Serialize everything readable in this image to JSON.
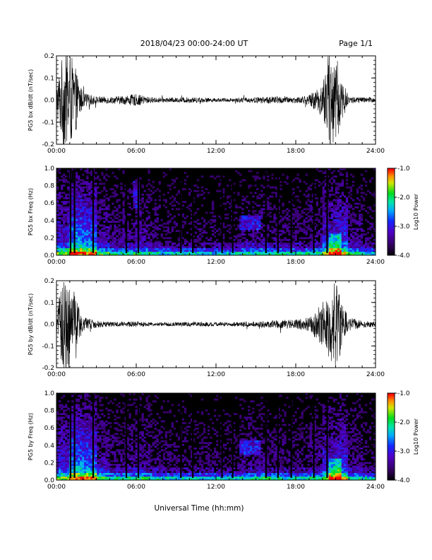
{
  "header": {
    "title": "2018/04/23  00:00-24:00 UT",
    "page": "Page 1/1"
  },
  "chart_data": [
    {
      "type": "line",
      "title": "",
      "ylabel": "PG5 bx dB/dt (nT/sec)",
      "xlim": [
        0,
        24
      ],
      "ylim": [
        -0.2,
        0.2
      ],
      "x_ticks": [
        "00:00",
        "06:00",
        "12:00",
        "18:00",
        "24:00"
      ],
      "y_ticks": [
        "-0.2",
        "-0.1",
        "0.0",
        "0.1",
        "0.2"
      ],
      "grid": false,
      "series": [
        {
          "x": [
            0,
            0.5,
            1,
            1.5,
            2,
            3,
            4,
            5,
            6,
            7,
            8,
            9,
            10,
            11,
            12,
            13,
            14,
            15,
            16,
            17,
            18,
            19,
            20,
            20.5,
            21,
            21.5,
            22,
            23,
            24
          ],
          "amplitude": [
            0.06,
            0.2,
            0.2,
            0.12,
            0.03,
            0.015,
            0.014,
            0.018,
            0.025,
            0.012,
            0.01,
            0.01,
            0.012,
            0.01,
            0.008,
            0.008,
            0.01,
            0.012,
            0.015,
            0.015,
            0.012,
            0.02,
            0.07,
            0.2,
            0.2,
            0.08,
            0.015,
            0.012,
            0.012
          ]
        }
      ]
    },
    {
      "type": "heatmap",
      "title": "",
      "ylabel": "PG5 bx Freq (Hz)",
      "xlim": [
        0,
        24
      ],
      "ylim": [
        0,
        1
      ],
      "x_ticks": [
        "00:00",
        "06:00",
        "12:00",
        "18:00",
        "24:00"
      ],
      "y_ticks": [
        "0.0",
        "0.2",
        "0.4",
        "0.6",
        "0.8",
        "1.0"
      ],
      "colorbar": {
        "label": "Log10 Power",
        "range": [
          -4.0,
          -1.0
        ],
        "ticks": [
          "-1.0",
          "-2.0",
          "-3.0",
          "-4.0"
        ]
      }
    },
    {
      "type": "line",
      "title": "",
      "ylabel": "PG5 by dB/dt (nT/sec)",
      "xlim": [
        0,
        24
      ],
      "ylim": [
        -0.2,
        0.2
      ],
      "x_ticks": [
        "00:00",
        "06:00",
        "12:00",
        "18:00",
        "24:00"
      ],
      "y_ticks": [
        "-0.2",
        "-0.1",
        "0.0",
        "0.1",
        "0.2"
      ],
      "grid": false,
      "series": [
        {
          "x": [
            0,
            0.5,
            1,
            1.5,
            2,
            3,
            4,
            5,
            6,
            7,
            8,
            9,
            10,
            11,
            12,
            13,
            14,
            15,
            16,
            17,
            18,
            19,
            20,
            20.5,
            21,
            21.5,
            22,
            23,
            24
          ],
          "amplitude": [
            0.06,
            0.2,
            0.2,
            0.1,
            0.03,
            0.015,
            0.01,
            0.01,
            0.012,
            0.008,
            0.008,
            0.008,
            0.01,
            0.01,
            0.008,
            0.008,
            0.01,
            0.012,
            0.015,
            0.018,
            0.02,
            0.03,
            0.09,
            0.14,
            0.2,
            0.1,
            0.03,
            0.015,
            0.012
          ]
        }
      ]
    },
    {
      "type": "heatmap",
      "title": "",
      "ylabel": "PG5 by Freq (Hz)",
      "xlim": [
        0,
        24
      ],
      "ylim": [
        0,
        1
      ],
      "x_ticks": [
        "00:00",
        "06:00",
        "12:00",
        "18:00",
        "24:00"
      ],
      "y_ticks": [
        "0.0",
        "0.2",
        "0.4",
        "0.6",
        "0.8",
        "1.0"
      ],
      "colorbar": {
        "label": "Log10 Power",
        "range": [
          -4.0,
          -1.0
        ],
        "ticks": [
          "-1.0",
          "-2.0",
          "-3.0",
          "-4.0"
        ]
      }
    }
  ],
  "xlabel": "Universal Time (hh:mm)"
}
